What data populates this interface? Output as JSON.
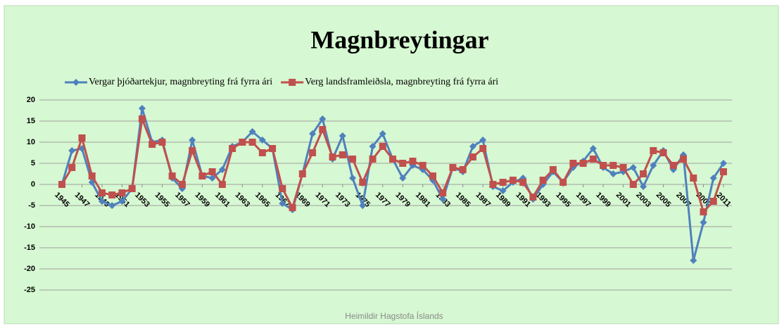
{
  "chart_data": {
    "type": "line",
    "title": "Magnbreytingar",
    "source": "Heimildir Hagstofa Íslands",
    "legend": "top",
    "grid": true,
    "x": [
      1945,
      1946,
      1947,
      1948,
      1949,
      1950,
      1951,
      1952,
      1953,
      1954,
      1955,
      1956,
      1957,
      1958,
      1959,
      1960,
      1961,
      1962,
      1963,
      1964,
      1965,
      1966,
      1967,
      1968,
      1969,
      1970,
      1971,
      1972,
      1973,
      1974,
      1975,
      1976,
      1977,
      1978,
      1979,
      1980,
      1981,
      1982,
      1983,
      1984,
      1985,
      1986,
      1987,
      1988,
      1989,
      1990,
      1991,
      1992,
      1993,
      1994,
      1995,
      1996,
      1997,
      1998,
      1999,
      2000,
      2001,
      2002,
      2003,
      2004,
      2005,
      2006,
      2007,
      2008,
      2009,
      2010,
      2011
    ],
    "xlim": [
      1945,
      2011
    ],
    "xticks": [
      1945,
      1947,
      1949,
      1951,
      1953,
      1955,
      1957,
      1959,
      1961,
      1963,
      1965,
      1967,
      1969,
      1971,
      1973,
      1975,
      1977,
      1979,
      1981,
      1983,
      1985,
      1987,
      1989,
      1991,
      1993,
      1995,
      1997,
      1999,
      2001,
      2003,
      2005,
      2007,
      2009,
      2011
    ],
    "ylim": [
      -25,
      20
    ],
    "yticks": [
      20,
      15,
      10,
      5,
      0,
      -5,
      -10,
      -15,
      -20,
      -25
    ],
    "series": [
      {
        "name": "Vergar þjóðartekjur, magnbreyting frá fyrra ári",
        "color": "#4f81bd",
        "marker": "diamond",
        "values": [
          0,
          8,
          8.5,
          0.5,
          -4,
          -5,
          -4,
          -1,
          18,
          10,
          10.5,
          1.5,
          -1,
          10.5,
          2,
          1.5,
          3.5,
          9,
          10,
          12.5,
          10.5,
          8.5,
          -4.5,
          -6,
          2.5,
          12,
          15.5,
          6,
          11.5,
          1.5,
          -5,
          9,
          12,
          6,
          1.5,
          4.5,
          3.5,
          1,
          -3.5,
          4,
          3,
          9,
          10.5,
          -0.5,
          -1.5,
          0.5,
          1.5,
          -3.5,
          0,
          3,
          0.5,
          4,
          5.5,
          8.5,
          4,
          2.5,
          3,
          4,
          -0.5,
          4.5,
          8,
          3.5,
          7,
          -18,
          -9,
          1.5,
          5
        ]
      },
      {
        "name": "Verg landsframleiðsla, magnbreyting frá fyrra ári",
        "color": "#c0504d",
        "marker": "square",
        "values": [
          0,
          4,
          11,
          2,
          -2,
          -2.5,
          -2,
          -1,
          15.5,
          9.5,
          10,
          2,
          0,
          8,
          2,
          3,
          0,
          8.5,
          10,
          10,
          7.5,
          8.5,
          -1,
          -5.5,
          2.5,
          7.5,
          13,
          6.5,
          7,
          6,
          0.5,
          6,
          9,
          6,
          5,
          5.5,
          4.5,
          2,
          -2,
          4,
          3.5,
          6.5,
          8.5,
          0,
          0.5,
          1,
          0.5,
          -3,
          1,
          3.5,
          0.5,
          5,
          5,
          6,
          4.5,
          4.5,
          4,
          0,
          2.5,
          8,
          7.5,
          4.5,
          6,
          1.5,
          -6.5,
          -4,
          3
        ]
      }
    ]
  }
}
